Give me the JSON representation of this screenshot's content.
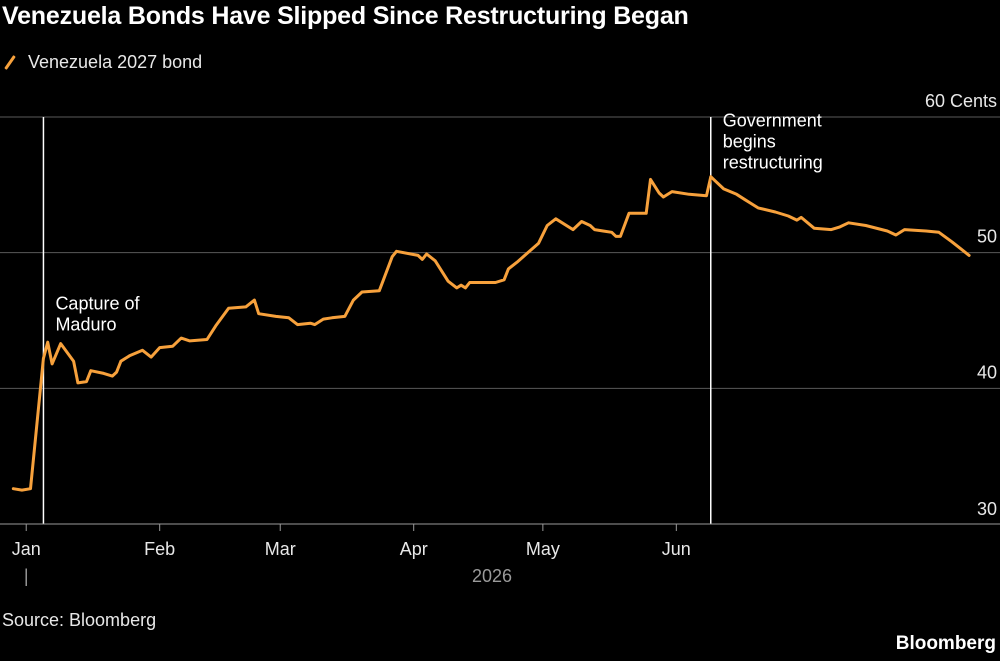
{
  "chart_data": {
    "type": "line",
    "title": "Venezuela Bonds Have Slipped Since Restructuring Began",
    "source": "Source: Bloomberg",
    "brand": "Bloomberg",
    "series": [
      {
        "name": "Venezuela 2027 bond",
        "color": "#f7a13c",
        "points": [
          [
            "2025-12-29",
            32.6
          ],
          [
            "2025-12-31",
            32.5
          ],
          [
            "2026-01-02",
            32.6
          ],
          [
            "2026-01-05",
            42.2
          ],
          [
            "2026-01-06",
            43.4
          ],
          [
            "2026-01-07",
            41.8
          ],
          [
            "2026-01-09",
            43.3
          ],
          [
            "2026-01-12",
            42.0
          ],
          [
            "2026-01-13",
            40.4
          ],
          [
            "2026-01-15",
            40.5
          ],
          [
            "2026-01-16",
            41.3
          ],
          [
            "2026-01-19",
            41.1
          ],
          [
            "2026-01-21",
            40.9
          ],
          [
            "2026-01-22",
            41.2
          ],
          [
            "2026-01-23",
            42.0
          ],
          [
            "2026-01-25",
            42.4
          ],
          [
            "2026-01-28",
            42.8
          ],
          [
            "2026-01-30",
            42.3
          ],
          [
            "2026-02-01",
            43.0
          ],
          [
            "2026-02-04",
            43.1
          ],
          [
            "2026-02-06",
            43.7
          ],
          [
            "2026-02-08",
            43.5
          ],
          [
            "2026-02-12",
            43.6
          ],
          [
            "2026-02-14",
            44.6
          ],
          [
            "2026-02-17",
            45.9
          ],
          [
            "2026-02-21",
            46.0
          ],
          [
            "2026-02-23",
            46.5
          ],
          [
            "2026-02-24",
            45.5
          ],
          [
            "2026-02-28",
            45.3
          ],
          [
            "2026-03-03",
            45.2
          ],
          [
            "2026-03-05",
            44.7
          ],
          [
            "2026-03-08",
            44.8
          ],
          [
            "2026-03-09",
            44.7
          ],
          [
            "2026-03-11",
            45.1
          ],
          [
            "2026-03-13",
            45.2
          ],
          [
            "2026-03-16",
            45.3
          ],
          [
            "2026-03-18",
            46.5
          ],
          [
            "2026-03-20",
            47.1
          ],
          [
            "2026-03-24",
            47.2
          ],
          [
            "2026-03-27",
            49.7
          ],
          [
            "2026-03-28",
            50.1
          ],
          [
            "2026-04-02",
            49.8
          ],
          [
            "2026-04-03",
            49.5
          ],
          [
            "2026-04-04",
            49.9
          ],
          [
            "2026-04-06",
            49.4
          ],
          [
            "2026-04-09",
            47.9
          ],
          [
            "2026-04-11",
            47.4
          ],
          [
            "2026-04-12",
            47.6
          ],
          [
            "2026-04-13",
            47.4
          ],
          [
            "2026-04-14",
            47.8
          ],
          [
            "2026-04-20",
            47.8
          ],
          [
            "2026-04-22",
            48.0
          ],
          [
            "2026-04-23",
            48.8
          ],
          [
            "2026-04-25",
            49.3
          ],
          [
            "2026-04-30",
            50.7
          ],
          [
            "2026-05-02",
            52.0
          ],
          [
            "2026-05-04",
            52.5
          ],
          [
            "2026-05-08",
            51.7
          ],
          [
            "2026-05-10",
            52.3
          ],
          [
            "2026-05-12",
            52.0
          ],
          [
            "2026-05-13",
            51.7
          ],
          [
            "2026-05-15",
            51.6
          ],
          [
            "2026-05-17",
            51.5
          ],
          [
            "2026-05-18",
            51.2
          ],
          [
            "2026-05-19",
            51.2
          ],
          [
            "2026-05-21",
            52.9
          ],
          [
            "2026-05-25",
            52.9
          ],
          [
            "2026-05-26",
            55.4
          ],
          [
            "2026-05-28",
            54.4
          ],
          [
            "2026-05-29",
            54.1
          ],
          [
            "2026-05-31",
            54.5
          ],
          [
            "2026-06-04",
            54.3
          ],
          [
            "2026-06-08",
            54.2
          ],
          [
            "2026-06-09",
            55.6
          ],
          [
            "2026-06-10",
            55.3
          ],
          [
            "2026-06-12",
            54.7
          ],
          [
            "2026-06-15",
            54.3
          ],
          [
            "2026-06-17",
            53.9
          ],
          [
            "2026-06-18",
            53.7
          ],
          [
            "2026-06-20",
            53.3
          ],
          [
            "2026-06-24",
            53.0
          ],
          [
            "2026-06-27",
            52.7
          ],
          [
            "2026-06-29",
            52.4
          ],
          [
            "2026-06-30",
            52.6
          ],
          [
            "2026-07-03",
            51.8
          ],
          [
            "2026-07-07",
            51.7
          ],
          [
            "2026-07-09",
            51.9
          ],
          [
            "2026-07-11",
            52.2
          ],
          [
            "2026-07-15",
            52.0
          ],
          [
            "2026-07-20",
            51.6
          ],
          [
            "2026-07-22",
            51.3
          ],
          [
            "2026-07-24",
            51.7
          ],
          [
            "2026-07-29",
            51.6
          ],
          [
            "2026-08-01",
            51.5
          ],
          [
            "2026-08-04",
            50.8
          ],
          [
            "2026-08-06",
            50.3
          ],
          [
            "2026-08-08",
            49.8
          ]
        ]
      }
    ],
    "x_axis": {
      "type": "date",
      "range": [
        "2025-12-28",
        "2026-08-11"
      ],
      "ticks": [
        {
          "date": "2026-01-01",
          "label": "Jan"
        },
        {
          "date": "2026-02-01",
          "label": "Feb"
        },
        {
          "date": "2026-03-01",
          "label": "Mar"
        },
        {
          "date": "2026-04-01",
          "label": "Apr"
        },
        {
          "date": "2026-05-01",
          "label": "May"
        },
        {
          "date": "2026-06-01",
          "label": "Jun"
        }
      ],
      "year_label": "2026",
      "year_marker": "|"
    },
    "y_axis": {
      "range": [
        30,
        60
      ],
      "position": "right",
      "ticks": [
        {
          "value": 60,
          "label": "60 Cents"
        },
        {
          "value": 50,
          "label": "50"
        },
        {
          "value": 40,
          "label": "40"
        },
        {
          "value": 30,
          "label": "30"
        }
      ],
      "grid": true
    },
    "annotations": [
      {
        "date": "2026-01-05",
        "lines": [
          "Capture of",
          "Maduro"
        ],
        "side": "right",
        "label_value": 45.8
      },
      {
        "date": "2026-06-09",
        "lines": [
          "Government",
          "begins",
          "restructuring"
        ],
        "side": "right",
        "label_value": 59.3
      }
    ],
    "legend": {
      "placement": "top-left"
    },
    "colors": {
      "background": "#000000",
      "line": "#f7a13c",
      "grid": "#5a5a5a",
      "annotation": "#ffffff"
    }
  }
}
